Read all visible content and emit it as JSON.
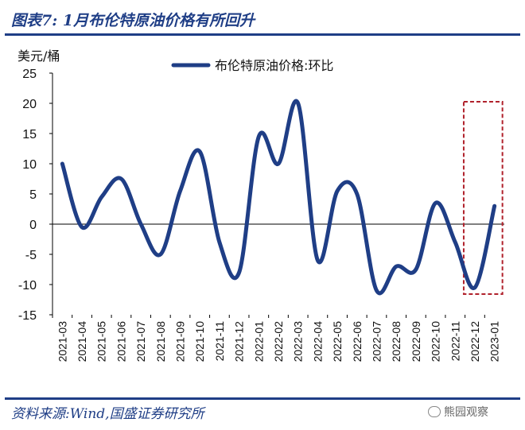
{
  "header": {
    "title": "图表7:  1月布伦特原油价格有所回升"
  },
  "footer": {
    "source": "资料来源:Wind,国盛证券研究所",
    "watermark": "熊园观察"
  },
  "colors": {
    "line": "#1f3e86",
    "highlight": "#b0212b",
    "rule": "#1f3e86"
  },
  "chart_data": {
    "type": "line",
    "ylabel": "美元/桶",
    "ylim": [
      -15,
      25
    ],
    "yticks": [
      25,
      20,
      15,
      10,
      5,
      0,
      -5,
      -10,
      -15
    ],
    "categories": [
      "2021-03",
      "2021-04",
      "2021-05",
      "2021-06",
      "2021-07",
      "2021-08",
      "2021-09",
      "2021-10",
      "2021-11",
      "2021-12",
      "2022-01",
      "2022-02",
      "2022-03",
      "2022-04",
      "2022-05",
      "2022-06",
      "2022-07",
      "2022-08",
      "2022-09",
      "2022-10",
      "2022-11",
      "2022-12",
      "2023-01"
    ],
    "series": [
      {
        "name": "布伦特原油价格:环比",
        "values": [
          10,
          -0.5,
          4.5,
          7.5,
          0,
          -5,
          5.5,
          12,
          -3,
          -8,
          14.5,
          10,
          20,
          -6,
          5.5,
          5,
          -11,
          -7,
          -7.5,
          3.5,
          -3,
          -10.5,
          3
        ]
      }
    ],
    "highlight": {
      "from": "2022-12",
      "to": "2023-01"
    },
    "legend_position": "top-center"
  }
}
